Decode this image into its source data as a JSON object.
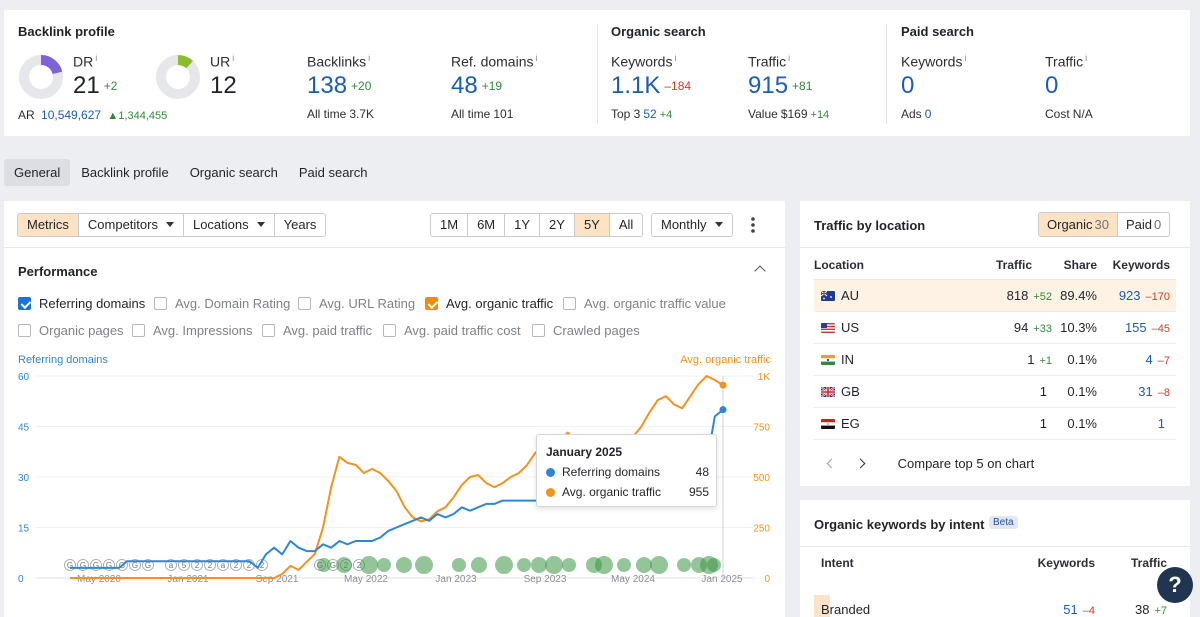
{
  "backlink_profile": {
    "title": "Backlink profile",
    "dr": {
      "label": "DR",
      "info": "i",
      "value": "21",
      "delta": "+2",
      "ring_fraction": 0.21
    },
    "ur": {
      "label": "UR",
      "info": "i",
      "value": "12",
      "ring_fraction": 0.12
    },
    "ar": {
      "label": "AR",
      "value": "10,549,627",
      "delta": "1,344,455"
    },
    "backlinks": {
      "label": "Backlinks",
      "info": "i",
      "value": "138",
      "delta": "+20",
      "sub_label": "All time",
      "sub_value": "3.7K"
    },
    "ref_domains": {
      "label": "Ref. domains",
      "info": "i",
      "value": "48",
      "delta": "+19",
      "sub_label": "All time",
      "sub_value": "101"
    }
  },
  "organic_search": {
    "title": "Organic search",
    "keywords": {
      "label": "Keywords",
      "info": "i",
      "value": "1.1K",
      "delta": "–184",
      "sub_label": "Top 3",
      "sub_value": "52",
      "sub_delta": "+4"
    },
    "traffic": {
      "label": "Traffic",
      "info": "i",
      "value": "915",
      "delta": "+81",
      "sub_label": "Value",
      "sub_value": "$169",
      "sub_delta": "+14"
    }
  },
  "paid_search": {
    "title": "Paid search",
    "keywords": {
      "label": "Keywords",
      "info": "i",
      "value": "0",
      "sub_label": "Ads",
      "sub_value": "0"
    },
    "traffic": {
      "label": "Traffic",
      "info": "i",
      "value": "0",
      "sub_label": "Cost",
      "sub_value": "N/A"
    }
  },
  "tabs": [
    "General",
    "Backlink profile",
    "Organic search",
    "Paid search"
  ],
  "toolbar": {
    "metrics": "Metrics",
    "competitors": "Competitors",
    "locations": "Locations",
    "years": "Years",
    "ranges": [
      "1M",
      "6M",
      "1Y",
      "2Y",
      "5Y",
      "All"
    ],
    "active_range": "5Y",
    "interval": "Monthly"
  },
  "performance": {
    "title": "Performance",
    "checkboxes": [
      {
        "label": "Referring domains",
        "checked": true
      },
      {
        "label": "Avg. Domain Rating",
        "checked": false
      },
      {
        "label": "Avg. URL Rating",
        "checked": false
      },
      {
        "label": "Avg. organic traffic",
        "checked": true
      },
      {
        "label": "Avg. organic traffic value",
        "checked": false
      },
      {
        "label": "Organic pages",
        "checked": false
      },
      {
        "label": "Avg. Impressions",
        "checked": false
      },
      {
        "label": "Avg. paid traffic",
        "checked": false
      },
      {
        "label": "Avg. paid traffic cost",
        "checked": false
      },
      {
        "label": "Crawled pages",
        "checked": false
      }
    ]
  },
  "chart_data": {
    "type": "line",
    "left_axis_label": "Referring domains",
    "right_axis_label": "Avg. organic traffic",
    "left_ticks": [
      "60",
      "45",
      "30",
      "15",
      "0"
    ],
    "right_ticks": [
      "1K",
      "750",
      "500",
      "250",
      "0"
    ],
    "left_ylim": [
      0,
      60
    ],
    "right_ylim": [
      0,
      1000
    ],
    "x_tick_labels": [
      "May 2020",
      "Jan 2021",
      "Sep 2021",
      "May 2022",
      "Jan 2023",
      "Sep 2023",
      "May 2024",
      "Jan 2025"
    ],
    "series": [
      {
        "name": "Referring domains",
        "color": "#2e86d6",
        "axis": "left",
        "values": [
          3,
          3,
          3,
          3,
          3,
          3,
          3,
          5,
          5,
          5,
          5,
          5,
          5,
          5,
          5,
          5,
          5,
          5,
          5,
          5,
          5,
          5,
          5,
          3,
          7,
          9,
          7,
          11,
          9,
          8,
          8,
          10,
          9,
          11,
          10,
          11,
          11,
          11,
          12,
          14,
          15,
          16,
          17,
          18,
          17,
          19,
          18,
          19,
          21,
          20,
          21,
          22,
          22,
          23,
          23,
          23,
          23,
          23,
          23,
          23,
          23,
          23,
          23,
          23,
          23,
          23,
          23,
          23,
          23,
          23,
          23,
          23,
          23,
          23,
          23,
          23,
          23,
          23,
          34,
          48,
          50
        ]
      },
      {
        "name": "Avg. organic traffic",
        "color": "#f5921e",
        "axis": "right",
        "values": [
          0,
          0,
          0,
          0,
          0,
          0,
          0,
          0,
          0,
          0,
          0,
          0,
          0,
          0,
          0,
          0,
          0,
          0,
          0,
          0,
          0,
          0,
          0,
          0,
          0,
          0,
          20,
          60,
          40,
          80,
          120,
          250,
          450,
          600,
          570,
          560,
          520,
          540,
          520,
          480,
          430,
          350,
          300,
          280,
          290,
          330,
          350,
          400,
          460,
          500,
          510,
          470,
          450,
          470,
          500,
          520,
          560,
          620,
          650,
          700,
          680,
          720,
          680,
          680,
          640,
          700,
          680,
          620,
          660,
          700,
          750,
          820,
          880,
          900,
          860,
          840,
          900,
          960,
          1000,
          980,
          955
        ]
      }
    ],
    "annotation_markers": [
      "G",
      "G",
      "G",
      "G",
      "G",
      "G",
      "G",
      "a",
      "5",
      "2",
      "2",
      "a",
      "2",
      "2",
      "2",
      "G",
      "G",
      "2",
      "2"
    ]
  },
  "tooltip": {
    "title": "January 2025",
    "rows": [
      {
        "label": "Referring domains",
        "value": "48",
        "color": "#2e86d6"
      },
      {
        "label": "Avg. organic traffic",
        "value": "955",
        "color": "#f5921e"
      }
    ]
  },
  "traffic_by_location": {
    "title": "Traffic by location",
    "organic_label": "Organic",
    "organic_count": "30",
    "paid_label": "Paid",
    "paid_count": "0",
    "headers": {
      "location": "Location",
      "traffic": "Traffic",
      "share": "Share",
      "keywords": "Keywords"
    },
    "rows": [
      {
        "country": "AU",
        "traffic": "818",
        "traffic_delta": "+52",
        "share": "89.4%",
        "keywords": "923",
        "keywords_delta": "–170",
        "share_fraction": 0.894
      },
      {
        "country": "US",
        "traffic": "94",
        "traffic_delta": "+33",
        "share": "10.3%",
        "keywords": "155",
        "keywords_delta": "–45",
        "share_fraction": 0.103
      },
      {
        "country": "IN",
        "traffic": "1",
        "traffic_delta": "+1",
        "share": "0.1%",
        "keywords": "4",
        "keywords_delta": "–7",
        "share_fraction": 0.001
      },
      {
        "country": "GB",
        "traffic": "1",
        "traffic_delta": "",
        "share": "0.1%",
        "keywords": "31",
        "keywords_delta": "–8",
        "share_fraction": 0.001
      },
      {
        "country": "EG",
        "traffic": "1",
        "traffic_delta": "",
        "share": "0.1%",
        "keywords": "1",
        "keywords_delta": "",
        "share_fraction": 0.001
      }
    ],
    "compare_label": "Compare top 5 on chart"
  },
  "keywords_by_intent": {
    "title": "Organic keywords by intent",
    "badge": "Beta",
    "headers": {
      "intent": "Intent",
      "keywords": "Keywords",
      "traffic": "Traffic"
    },
    "rows": [
      {
        "intent": "Branded",
        "keywords": "51",
        "keywords_delta": "–4",
        "traffic": "38",
        "traffic_delta": "+7"
      }
    ]
  },
  "help_label": "?"
}
